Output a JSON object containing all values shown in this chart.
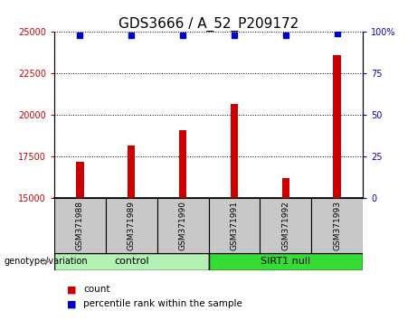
{
  "title": "GDS3666 / A_52_P209172",
  "samples": [
    "GSM371988",
    "GSM371989",
    "GSM371990",
    "GSM371991",
    "GSM371992",
    "GSM371993"
  ],
  "counts": [
    17200,
    18200,
    19100,
    20700,
    16200,
    23600
  ],
  "percentile_ranks": [
    98,
    98,
    98,
    98,
    98,
    99
  ],
  "ylim_left": [
    15000,
    25000
  ],
  "ylim_right": [
    0,
    100
  ],
  "yticks_left": [
    15000,
    17500,
    20000,
    22500,
    25000
  ],
  "yticks_right": [
    0,
    25,
    50,
    75,
    100
  ],
  "bar_color": "#cc0000",
  "dot_color": "#0000cc",
  "groups": [
    {
      "label": "control",
      "indices": [
        0,
        1,
        2
      ],
      "color": "#b3f0b3"
    },
    {
      "label": "SIRT1 null",
      "indices": [
        3,
        4,
        5
      ],
      "color": "#33dd33"
    }
  ],
  "group_label_prefix": "genotype/variation",
  "legend_count_label": "count",
  "legend_percentile_label": "percentile rank within the sample",
  "sample_box_color": "#c8c8c8",
  "title_fontsize": 11,
  "tick_fontsize": 7,
  "bar_width": 0.15
}
